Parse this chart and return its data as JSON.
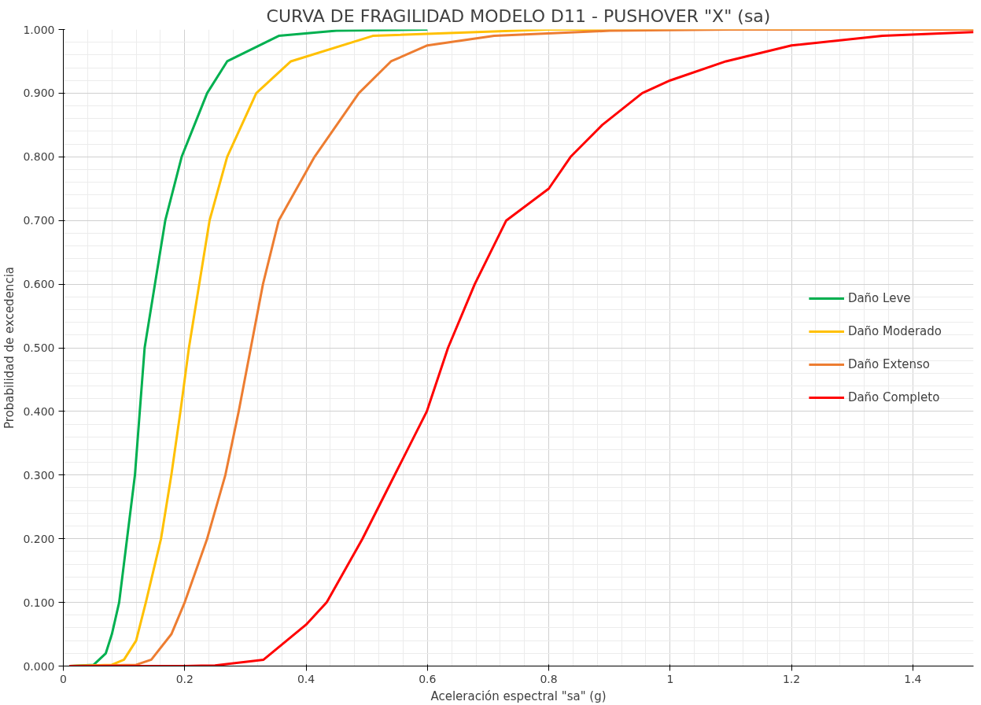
{
  "chart_data": {
    "type": "line",
    "title": "CURVA DE FRAGILIDAD MODELO D11 - PUSHOVER \"X\" (sa)",
    "xlabel": "Aceleración espectral \"sa\" (g)",
    "ylabel": "Probabilidad de excedencia",
    "xlim": [
      0,
      1.5
    ],
    "ylim": [
      0,
      1
    ],
    "xticks": [
      0,
      0.2,
      0.4,
      0.6,
      0.8,
      1,
      1.2,
      1.4
    ],
    "yticks": [
      {
        "value": 0,
        "label": "0.000"
      },
      {
        "value": 0.1,
        "label": "0.100"
      },
      {
        "value": 0.2,
        "label": "0.200"
      },
      {
        "value": 0.3,
        "label": "0.300"
      },
      {
        "value": 0.4,
        "label": "0.400"
      },
      {
        "value": 0.5,
        "label": "0.500"
      },
      {
        "value": 0.6,
        "label": "0.600"
      },
      {
        "value": 0.7,
        "label": "0.700"
      },
      {
        "value": 0.8,
        "label": "0.800"
      },
      {
        "value": 0.9,
        "label": "0.900"
      },
      {
        "value": 1,
        "label": "1.000"
      }
    ],
    "grid": true,
    "legend": "right",
    "marker": "none",
    "line_style": "solid",
    "series": [
      {
        "name": "Daño Leve",
        "color": "#00b050",
        "x": [
          0.01,
          0.05,
          0.07,
          0.08,
          0.092,
          0.105,
          0.118,
          0.126,
          0.134,
          0.151,
          0.168,
          0.195,
          0.237,
          0.27,
          0.355,
          0.45,
          0.6
        ],
        "values": [
          0,
          0.002,
          0.02,
          0.05,
          0.1,
          0.2,
          0.3,
          0.4,
          0.5,
          0.6,
          0.7,
          0.8,
          0.9,
          0.95,
          0.99,
          0.998,
          1
        ]
      },
      {
        "name": "Daño Moderado",
        "color": "#ffc000",
        "x": [
          0.01,
          0.08,
          0.1,
          0.12,
          0.136,
          0.161,
          0.178,
          0.193,
          0.207,
          0.224,
          0.241,
          0.27,
          0.318,
          0.375,
          0.51,
          0.8,
          1.5
        ],
        "values": [
          0,
          0.002,
          0.01,
          0.04,
          0.1,
          0.2,
          0.3,
          0.4,
          0.5,
          0.6,
          0.7,
          0.8,
          0.9,
          0.95,
          0.99,
          1,
          1
        ]
      },
      {
        "name": "Daño Extenso",
        "color": "#ed7d31",
        "x": [
          0.01,
          0.12,
          0.145,
          0.178,
          0.2,
          0.237,
          0.267,
          0.289,
          0.309,
          0.329,
          0.355,
          0.414,
          0.487,
          0.54,
          0.6,
          0.71,
          0.9,
          1.1,
          1.5
        ],
        "values": [
          0,
          0.002,
          0.01,
          0.05,
          0.1,
          0.2,
          0.3,
          0.4,
          0.5,
          0.6,
          0.7,
          0.8,
          0.9,
          0.95,
          0.975,
          0.99,
          0.998,
          1,
          1
        ]
      },
      {
        "name": "Daño Completo",
        "color": "#ff0000",
        "x": [
          0.01,
          0.2,
          0.25,
          0.33,
          0.4,
          0.434,
          0.493,
          0.546,
          0.599,
          0.634,
          0.678,
          0.73,
          0.8,
          0.836,
          0.888,
          0.954,
          1.0,
          1.092,
          1.2,
          1.35,
          1.5
        ],
        "values": [
          0,
          0,
          0.001,
          0.01,
          0.065,
          0.1,
          0.2,
          0.3,
          0.4,
          0.5,
          0.6,
          0.7,
          0.75,
          0.8,
          0.85,
          0.9,
          0.92,
          0.95,
          0.975,
          0.99,
          0.996
        ]
      }
    ]
  }
}
